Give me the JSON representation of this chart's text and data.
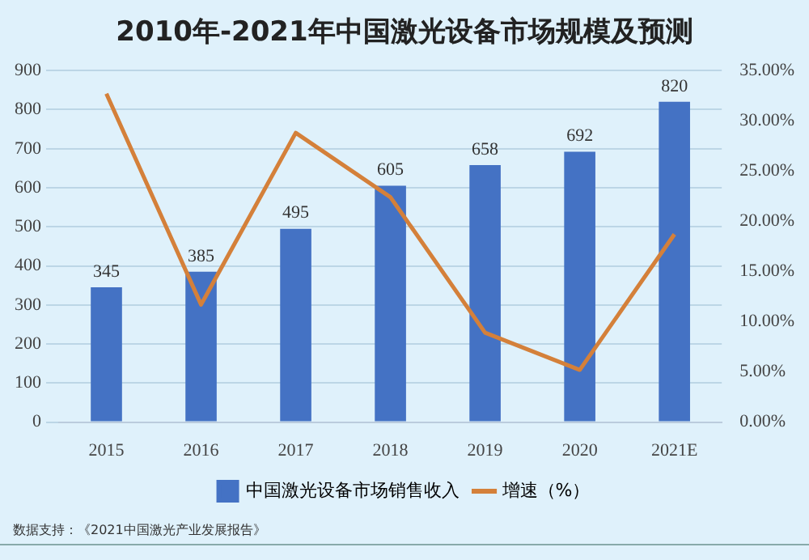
{
  "chart_data": {
    "type": "bar",
    "title": "2010年-2021年中国激光设备市场规模及预测",
    "categories": [
      "2015",
      "2016",
      "2017",
      "2018",
      "2019",
      "2020",
      "2021E"
    ],
    "series": [
      {
        "name": "中国激光设备市场销售收入",
        "color": "#4472c4",
        "values": [
          345,
          385,
          495,
          605,
          658,
          692,
          820
        ],
        "value_labels": [
          "345",
          "385",
          "495",
          "605",
          "658",
          "692",
          "820"
        ]
      },
      {
        "name": "增速（%）",
        "type": "line",
        "axis": "y2",
        "color": "#d4803a",
        "values": [
          32.7,
          11.7,
          28.8,
          22.4,
          8.9,
          5.2,
          18.7
        ]
      }
    ],
    "ylim": [
      0,
      900
    ],
    "yticks": [
      0,
      100,
      200,
      300,
      400,
      500,
      600,
      700,
      800,
      900
    ],
    "y2lim": [
      0,
      35
    ],
    "y2ticks": [
      {
        "value": 0,
        "label": "0.00%"
      },
      {
        "value": 5,
        "label": "5.00%"
      },
      {
        "value": 10,
        "label": "10.00%"
      },
      {
        "value": 15,
        "label": "15.00%"
      },
      {
        "value": 20,
        "label": "20.00%"
      },
      {
        "value": 25,
        "label": "25.00%"
      },
      {
        "value": 30,
        "label": "30.00%"
      },
      {
        "value": 35,
        "label": "35.00%"
      }
    ],
    "grid": "y",
    "legend": "bottom",
    "marker": "none",
    "annotations": [
      "数据支持：《2021中国激光产业发展报告》"
    ]
  }
}
